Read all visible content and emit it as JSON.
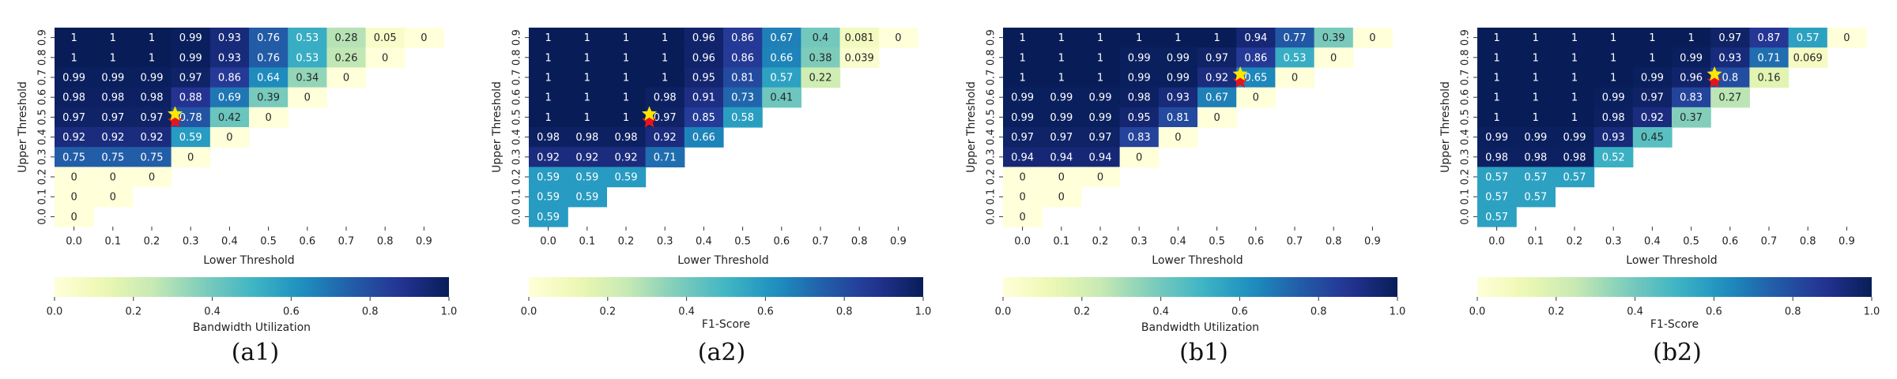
{
  "figure": {
    "panels": [
      "(a1)",
      "(a2)",
      "(b1)",
      "(b2)"
    ]
  },
  "colors": {
    "stops": [
      "#ffffd9",
      "#edf8b1",
      "#c7e9b4",
      "#7fcdbb",
      "#41b6c4",
      "#1d91c0",
      "#225ea8",
      "#253494",
      "#081d58"
    ],
    "star_yellow": "#ffe600",
    "star_red": "#e8141b"
  },
  "chart_data": [
    {
      "type": "heatmap",
      "panel_label": "(a1)",
      "xlabel": "Lower Threshold",
      "ylabel": "Upper Threshold",
      "x_ticks": [
        "0.0",
        "0.1",
        "0.2",
        "0.3",
        "0.4",
        "0.5",
        "0.6",
        "0.7",
        "0.8",
        "0.9"
      ],
      "y_ticks": [
        "0.0",
        "0.1",
        "0.2",
        "0.3",
        "0.4",
        "0.5",
        "0.6",
        "0.7",
        "0.8",
        "0.9"
      ],
      "colorbar": {
        "label": "Bandwidth Utilization",
        "ticks": [
          "0.0",
          "0.2",
          "0.4",
          "0.6",
          "0.8",
          "1.0"
        ],
        "range": [
          0,
          1
        ]
      },
      "star": {
        "row": "0.5",
        "lower_threshold": 0.26
      },
      "rows": [
        {
          "upper": "0.9",
          "values": [
            "1",
            "1",
            "1",
            "0.99",
            "0.93",
            "0.76",
            "0.53",
            "0.28",
            "0.05",
            "0"
          ]
        },
        {
          "upper": "0.8",
          "values": [
            "1",
            "1",
            "1",
            "0.99",
            "0.93",
            "0.76",
            "0.53",
            "0.26",
            "0"
          ]
        },
        {
          "upper": "0.7",
          "values": [
            "0.99",
            "0.99",
            "0.99",
            "0.97",
            "0.86",
            "0.64",
            "0.34",
            "0"
          ]
        },
        {
          "upper": "0.6",
          "values": [
            "0.98",
            "0.98",
            "0.98",
            "0.88",
            "0.69",
            "0.39",
            "0"
          ]
        },
        {
          "upper": "0.5",
          "values": [
            "0.97",
            "0.97",
            "0.97",
            "0.78",
            "0.42",
            "0"
          ]
        },
        {
          "upper": "0.4",
          "values": [
            "0.92",
            "0.92",
            "0.92",
            "0.59",
            "0"
          ]
        },
        {
          "upper": "0.3",
          "values": [
            "0.75",
            "0.75",
            "0.75",
            "0"
          ]
        },
        {
          "upper": "0.2",
          "values": [
            "0",
            "0",
            "0"
          ]
        },
        {
          "upper": "0.1",
          "values": [
            "0",
            "0"
          ]
        },
        {
          "upper": "0.0",
          "values": [
            "0"
          ]
        }
      ]
    },
    {
      "type": "heatmap",
      "panel_label": "(a2)",
      "xlabel": "Lower Threshold",
      "ylabel": "Upper Threshold",
      "x_ticks": [
        "0.0",
        "0.1",
        "0.2",
        "0.3",
        "0.4",
        "0.5",
        "0.6",
        "0.7",
        "0.8",
        "0.9"
      ],
      "y_ticks": [
        "0.0",
        "0.1",
        "0.2",
        "0.3",
        "0.4",
        "0.5",
        "0.6",
        "0.7",
        "0.8",
        "0.9"
      ],
      "colorbar": {
        "label": "F1-Score",
        "ticks": [
          "0.0",
          "0.2",
          "0.4",
          "0.6",
          "0.8",
          "1.0"
        ],
        "range": [
          0,
          1
        ]
      },
      "star": {
        "row": "0.5",
        "lower_threshold": 0.26
      },
      "rows": [
        {
          "upper": "0.9",
          "values": [
            "1",
            "1",
            "1",
            "1",
            "0.96",
            "0.86",
            "0.67",
            "0.4",
            "0.081",
            "0"
          ]
        },
        {
          "upper": "0.8",
          "values": [
            "1",
            "1",
            "1",
            "1",
            "0.96",
            "0.86",
            "0.66",
            "0.38",
            "0.039"
          ]
        },
        {
          "upper": "0.7",
          "values": [
            "1",
            "1",
            "1",
            "1",
            "0.95",
            "0.81",
            "0.57",
            "0.22"
          ]
        },
        {
          "upper": "0.6",
          "values": [
            "1",
            "1",
            "1",
            "0.98",
            "0.91",
            "0.73",
            "0.41"
          ]
        },
        {
          "upper": "0.5",
          "values": [
            "1",
            "1",
            "1",
            "0.97",
            "0.85",
            "0.58"
          ]
        },
        {
          "upper": "0.4",
          "values": [
            "0.98",
            "0.98",
            "0.98",
            "0.92",
            "0.66"
          ]
        },
        {
          "upper": "0.3",
          "values": [
            "0.92",
            "0.92",
            "0.92",
            "0.71"
          ]
        },
        {
          "upper": "0.2",
          "values": [
            "0.59",
            "0.59",
            "0.59"
          ]
        },
        {
          "upper": "0.1",
          "values": [
            "0.59",
            "0.59"
          ]
        },
        {
          "upper": "0.0",
          "values": [
            "0.59"
          ]
        }
      ]
    },
    {
      "type": "heatmap",
      "panel_label": "(b1)",
      "xlabel": "Lower Threshold",
      "ylabel": "Upper Threshold",
      "x_ticks": [
        "0.0",
        "0.1",
        "0.2",
        "0.3",
        "0.4",
        "0.5",
        "0.6",
        "0.7",
        "0.8",
        "0.9"
      ],
      "y_ticks": [
        "0.0",
        "0.1",
        "0.2",
        "0.3",
        "0.4",
        "0.5",
        "0.6",
        "0.7",
        "0.8",
        "0.9"
      ],
      "colorbar": {
        "label": "Bandwidth Utilization",
        "ticks": [
          "0.0",
          "0.2",
          "0.4",
          "0.6",
          "0.8",
          "1.0"
        ],
        "range": [
          0,
          1
        ]
      },
      "star": {
        "row": "0.7",
        "lower_threshold": 0.56
      },
      "rows": [
        {
          "upper": "0.9",
          "values": [
            "1",
            "1",
            "1",
            "1",
            "1",
            "1",
            "0.94",
            "0.77",
            "0.39",
            "0"
          ]
        },
        {
          "upper": "0.8",
          "values": [
            "1",
            "1",
            "1",
            "0.99",
            "0.99",
            "0.97",
            "0.86",
            "0.53",
            "0"
          ]
        },
        {
          "upper": "0.7",
          "values": [
            "1",
            "1",
            "1",
            "0.99",
            "0.99",
            "0.92",
            "0.65",
            "0"
          ]
        },
        {
          "upper": "0.6",
          "values": [
            "0.99",
            "0.99",
            "0.99",
            "0.98",
            "0.93",
            "0.67",
            "0"
          ]
        },
        {
          "upper": "0.5",
          "values": [
            "0.99",
            "0.99",
            "0.99",
            "0.95",
            "0.81",
            "0"
          ]
        },
        {
          "upper": "0.4",
          "values": [
            "0.97",
            "0.97",
            "0.97",
            "0.83",
            "0"
          ]
        },
        {
          "upper": "0.3",
          "values": [
            "0.94",
            "0.94",
            "0.94",
            "0"
          ]
        },
        {
          "upper": "0.2",
          "values": [
            "0",
            "0",
            "0"
          ]
        },
        {
          "upper": "0.1",
          "values": [
            "0",
            "0"
          ]
        },
        {
          "upper": "0.0",
          "values": [
            "0"
          ]
        }
      ]
    },
    {
      "type": "heatmap",
      "panel_label": "(b2)",
      "xlabel": "Lower Threshold",
      "ylabel": "Upper Threshold",
      "x_ticks": [
        "0.0",
        "0.1",
        "0.2",
        "0.3",
        "0.4",
        "0.5",
        "0.6",
        "0.7",
        "0.8",
        "0.9"
      ],
      "y_ticks": [
        "0.0",
        "0.1",
        "0.2",
        "0.3",
        "0.4",
        "0.5",
        "0.6",
        "0.7",
        "0.8",
        "0.9"
      ],
      "colorbar": {
        "label": "F1-Score",
        "ticks": [
          "0.0",
          "0.2",
          "0.4",
          "0.6",
          "0.8",
          "1.0"
        ],
        "range": [
          0,
          1
        ]
      },
      "star": {
        "row": "0.7",
        "lower_threshold": 0.56
      },
      "rows": [
        {
          "upper": "0.9",
          "values": [
            "1",
            "1",
            "1",
            "1",
            "1",
            "1",
            "0.97",
            "0.87",
            "0.57",
            "0"
          ]
        },
        {
          "upper": "0.8",
          "values": [
            "1",
            "1",
            "1",
            "1",
            "1",
            "0.99",
            "0.93",
            "0.71",
            "0.069"
          ]
        },
        {
          "upper": "0.7",
          "values": [
            "1",
            "1",
            "1",
            "1",
            "0.99",
            "0.96",
            "0.8",
            "0.16"
          ]
        },
        {
          "upper": "0.6",
          "values": [
            "1",
            "1",
            "1",
            "0.99",
            "0.97",
            "0.83",
            "0.27"
          ]
        },
        {
          "upper": "0.5",
          "values": [
            "1",
            "1",
            "1",
            "0.98",
            "0.92",
            "0.37"
          ]
        },
        {
          "upper": "0.4",
          "values": [
            "0.99",
            "0.99",
            "0.99",
            "0.93",
            "0.45"
          ]
        },
        {
          "upper": "0.3",
          "values": [
            "0.98",
            "0.98",
            "0.98",
            "0.52"
          ]
        },
        {
          "upper": "0.2",
          "values": [
            "0.57",
            "0.57",
            "0.57"
          ]
        },
        {
          "upper": "0.1",
          "values": [
            "0.57",
            "0.57"
          ]
        },
        {
          "upper": "0.0",
          "values": [
            "0.57"
          ]
        }
      ]
    }
  ]
}
